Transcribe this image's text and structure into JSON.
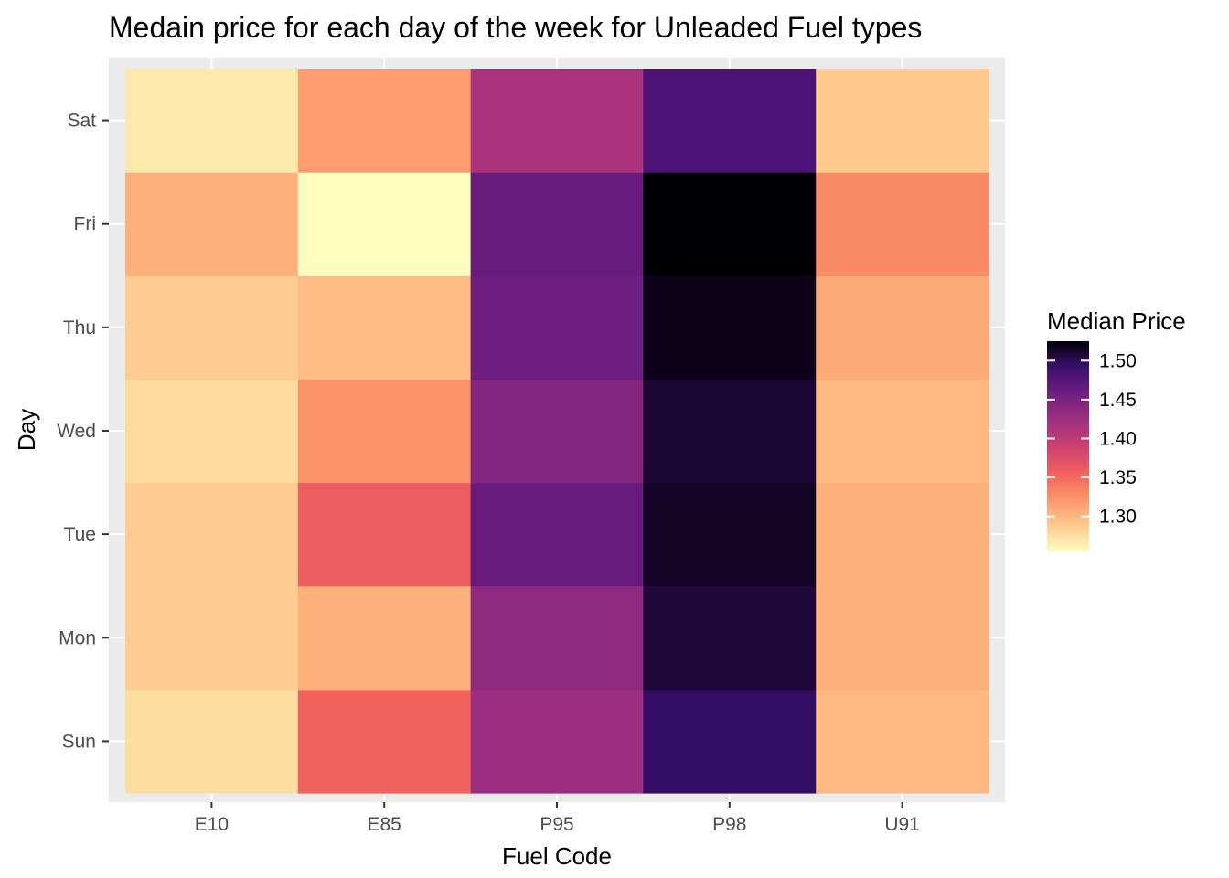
{
  "chart_data": {
    "type": "heatmap",
    "title": "Medain price for each day of the week for Unleaded Fuel types",
    "xlabel": "Fuel Code",
    "ylabel": "Day",
    "x": [
      "E10",
      "E85",
      "P95",
      "P98",
      "U91"
    ],
    "y": [
      "Sun",
      "Mon",
      "Tue",
      "Wed",
      "Thu",
      "Fri",
      "Sat"
    ],
    "values": [
      [
        1.275,
        1.355,
        1.425,
        1.495,
        1.3
      ],
      [
        1.287,
        1.305,
        1.435,
        1.508,
        1.305
      ],
      [
        1.287,
        1.36,
        1.465,
        1.515,
        1.305
      ],
      [
        1.278,
        1.325,
        1.445,
        1.51,
        1.3
      ],
      [
        1.287,
        1.298,
        1.46,
        1.518,
        1.308
      ],
      [
        1.305,
        1.255,
        1.465,
        1.525,
        1.33
      ],
      [
        1.268,
        1.318,
        1.415,
        1.482,
        1.288
      ]
    ],
    "legend": {
      "title": "Median Price",
      "ticks": [
        1.3,
        1.35,
        1.4,
        1.45,
        1.5
      ],
      "tick_labels": [
        "1.30",
        "1.35",
        "1.40",
        "1.45",
        "1.50"
      ],
      "range": [
        1.255,
        1.525
      ],
      "placement": "right"
    },
    "colorscale": "magma-reversed",
    "grid": true,
    "panel_background": "#ebebeb"
  }
}
